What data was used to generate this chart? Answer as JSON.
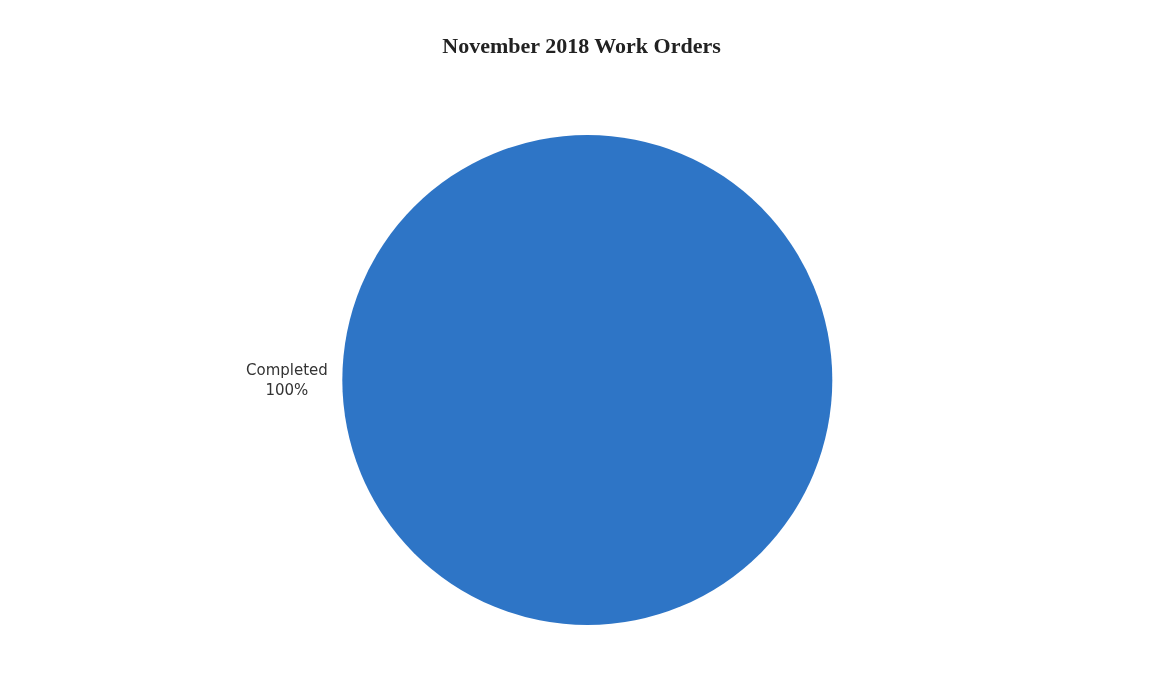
{
  "chart_data": {
    "type": "pie",
    "title": "November 2018 Work Orders",
    "categories": [
      "Completed"
    ],
    "values": [
      100
    ],
    "value_labels": [
      "100%"
    ],
    "colors": [
      "#2e75c6"
    ],
    "legend": false
  }
}
